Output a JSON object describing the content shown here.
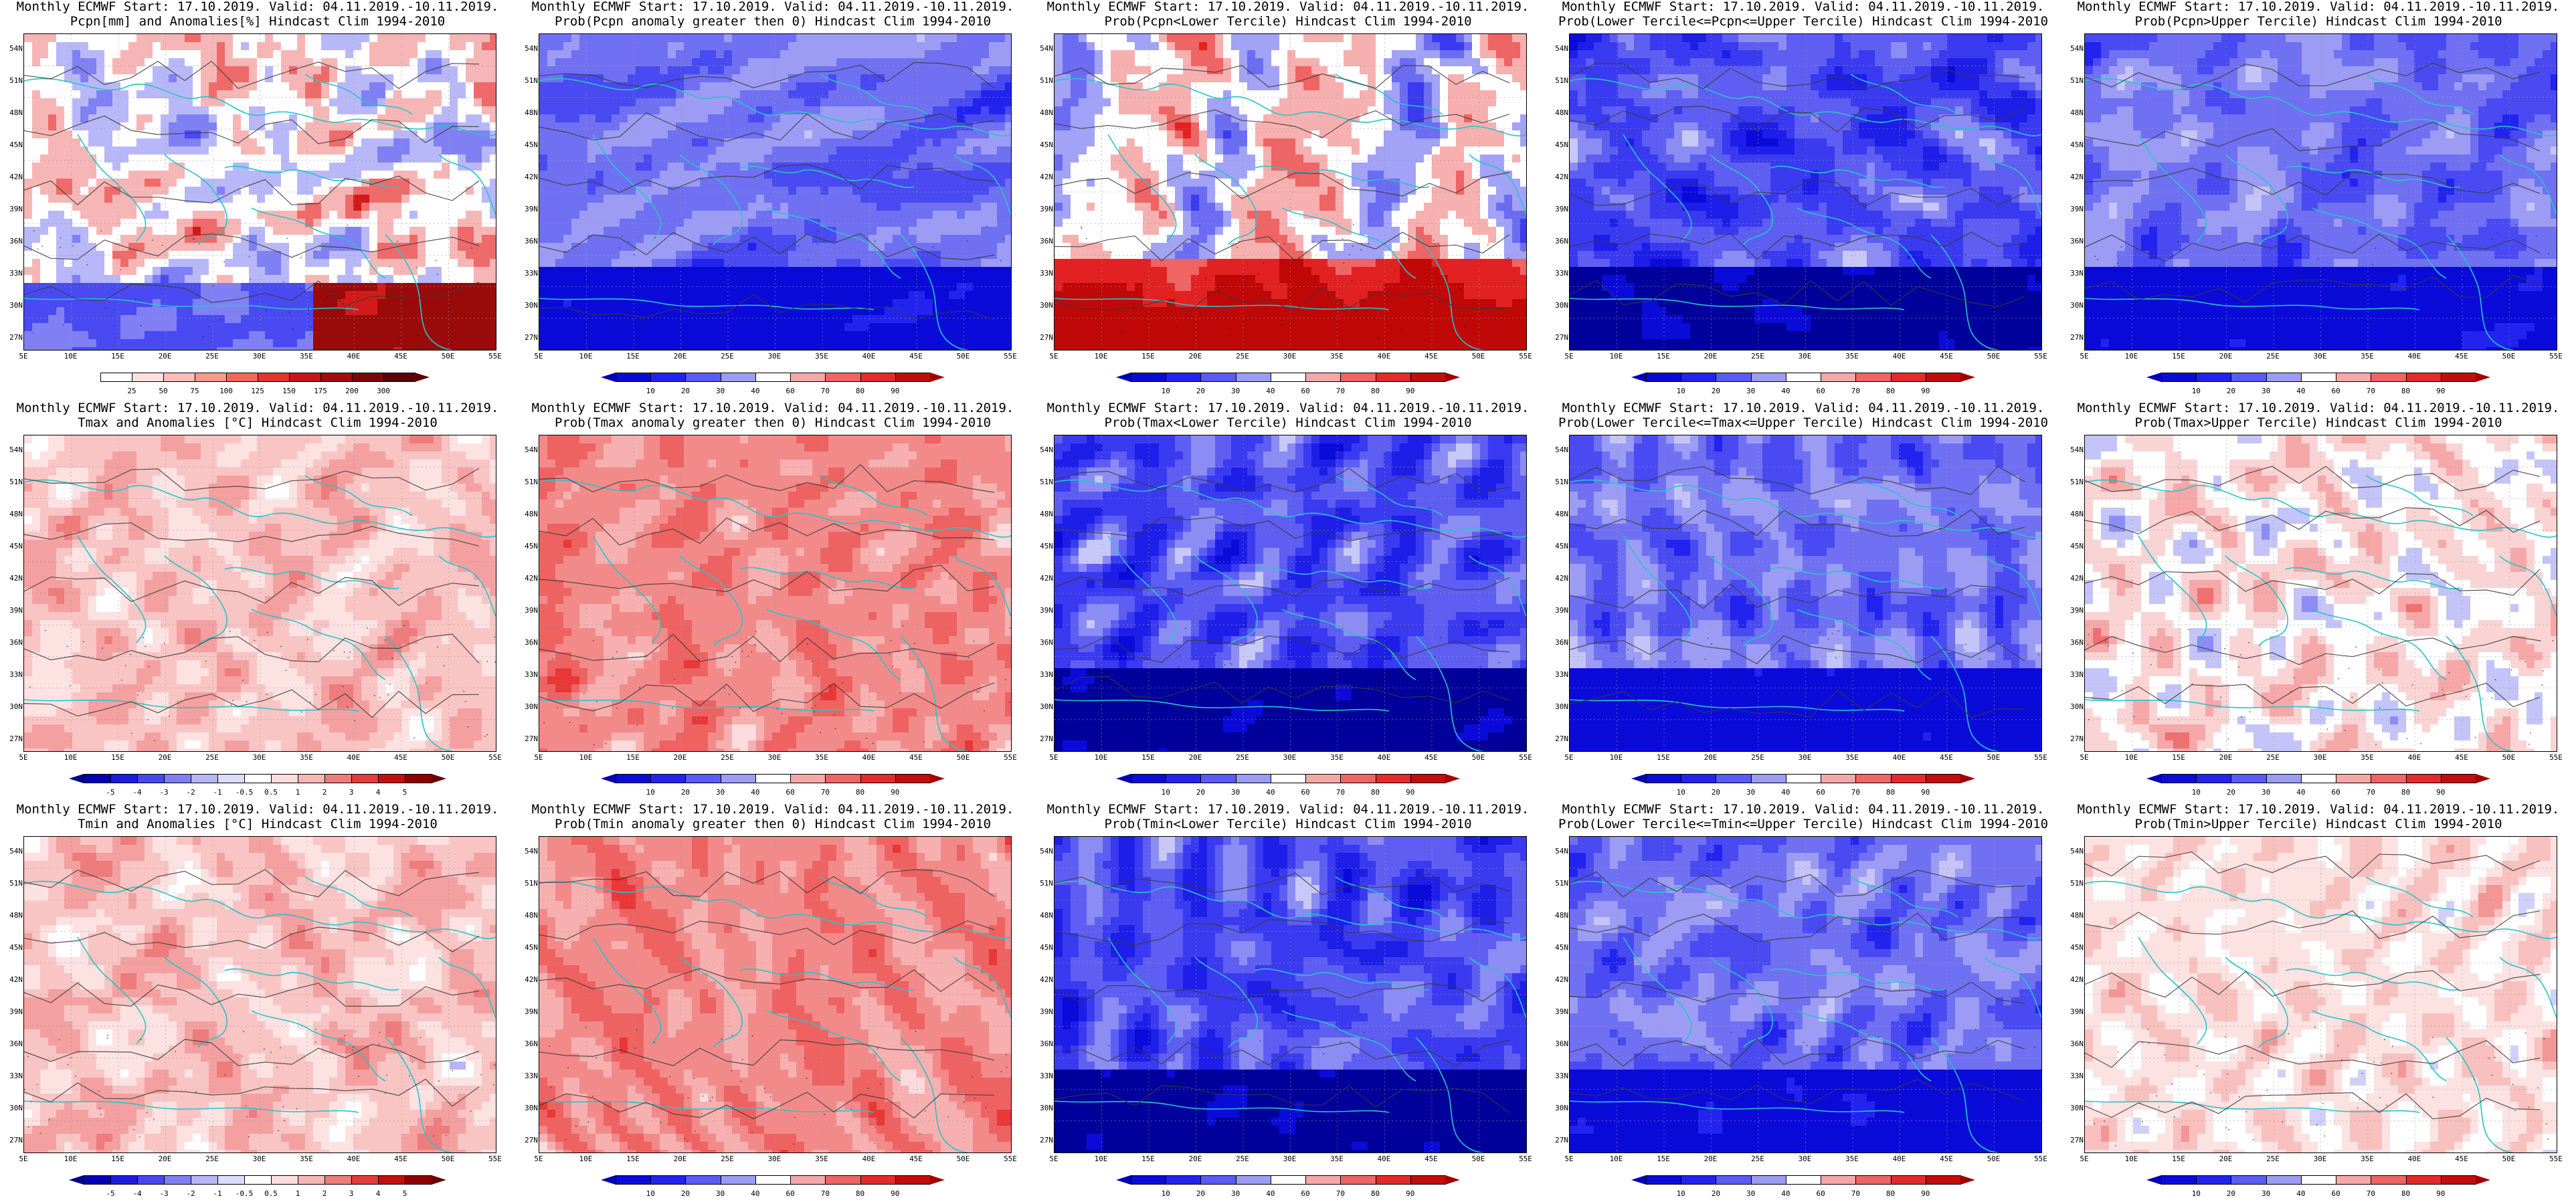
{
  "panels": [
    {
      "row": 0,
      "col": 0,
      "title1": "Monthly ECMWF Start: 17.10.2019. Valid: 04.11.2019.-10.11.2019.",
      "title2": "Pcpn[mm] and Anomalies[%] Hindcast Clim 1994-2010",
      "scheme": "anom-precip",
      "cbar": "precip"
    },
    {
      "row": 0,
      "col": 1,
      "title1": "Monthly ECMWF Start: 17.10.2019. Valid: 04.11.2019.-10.11.2019.",
      "title2": "Prob(Pcpn anomaly greater then 0) Hindcast Clim 1994-2010",
      "scheme": "prob-blue",
      "cbar": "prob"
    },
    {
      "row": 0,
      "col": 2,
      "title1": "Monthly ECMWF Start: 17.10.2019. Valid: 04.11.2019.-10.11.2019.",
      "title2": "Prob(Pcpn<Lower Tercile) Hindcast Clim 1994-2010",
      "scheme": "prob-lower",
      "cbar": "prob"
    },
    {
      "row": 0,
      "col": 3,
      "title1": "Monthly ECMWF Start: 17.10.2019. Valid: 04.11.2019.-10.11.2019.",
      "title2": "Prob(Lower Tercile<=Pcpn<=Upper Tercile) Hindcast Clim 1994-2010",
      "scheme": "prob-deep",
      "cbar": "prob"
    },
    {
      "row": 0,
      "col": 4,
      "title1": "Monthly ECMWF Start: 17.10.2019. Valid: 04.11.2019.-10.11.2019.",
      "title2": "Prob(Pcpn>Upper Tercile) Hindcast Clim 1994-2010",
      "scheme": "prob-blue",
      "cbar": "prob"
    },
    {
      "row": 1,
      "col": 0,
      "title1": "Monthly ECMWF Start: 17.10.2019. Valid: 04.11.2019.-10.11.2019.",
      "title2": "Tmax and Anomalies [°C] Hindcast Clim 1994-2010",
      "scheme": "anom-warm",
      "cbar": "temp"
    },
    {
      "row": 1,
      "col": 1,
      "title1": "Monthly ECMWF Start: 17.10.2019. Valid: 04.11.2019.-10.11.2019.",
      "title2": "Prob(Tmax anomaly greater then 0) Hindcast Clim 1994-2010",
      "scheme": "prob-red",
      "cbar": "prob"
    },
    {
      "row": 1,
      "col": 2,
      "title1": "Monthly ECMWF Start: 17.10.2019. Valid: 04.11.2019.-10.11.2019.",
      "title2": "Prob(Tmax<Lower Tercile) Hindcast Clim 1994-2010",
      "scheme": "prob-deep",
      "cbar": "prob"
    },
    {
      "row": 1,
      "col": 3,
      "title1": "Monthly ECMWF Start: 17.10.2019. Valid: 04.11.2019.-10.11.2019.",
      "title2": "Prob(Lower Tercile<=Tmax<=Upper Tercile) Hindcast Clim 1994-2010",
      "scheme": "prob-blue",
      "cbar": "prob"
    },
    {
      "row": 1,
      "col": 4,
      "title1": "Monthly ECMWF Start: 17.10.2019. Valid: 04.11.2019.-10.11.2019.",
      "title2": "Prob(Tmax>Upper Tercile) Hindcast Clim 1994-2010",
      "scheme": "prob-mixed",
      "cbar": "prob"
    },
    {
      "row": 2,
      "col": 0,
      "title1": "Monthly ECMWF Start: 17.10.2019. Valid: 04.11.2019.-10.11.2019.",
      "title2": "Tmin and Anomalies [°C] Hindcast Clim 1994-2010",
      "scheme": "anom-warm",
      "cbar": "temp"
    },
    {
      "row": 2,
      "col": 1,
      "title1": "Monthly ECMWF Start: 17.10.2019. Valid: 04.11.2019.-10.11.2019.",
      "title2": "Prob(Tmin anomaly greater then 0) Hindcast Clim 1994-2010",
      "scheme": "prob-red",
      "cbar": "prob"
    },
    {
      "row": 2,
      "col": 2,
      "title1": "Monthly ECMWF Start: 17.10.2019. Valid: 04.11.2019.-10.11.2019.",
      "title2": "Prob(Tmin<Lower Tercile) Hindcast Clim 1994-2010",
      "scheme": "prob-deep",
      "cbar": "prob"
    },
    {
      "row": 2,
      "col": 3,
      "title1": "Monthly ECMWF Start: 17.10.2019. Valid: 04.11.2019.-10.11.2019.",
      "title2": "Prob(Lower Tercile<=Tmin<=Upper Tercile) Hindcast Clim 1994-2010",
      "scheme": "prob-blue",
      "cbar": "prob"
    },
    {
      "row": 2,
      "col": 4,
      "title1": "Monthly ECMWF Start: 17.10.2019. Valid: 04.11.2019.-10.11.2019.",
      "title2": "Prob(Tmin>Upper Tercile) Hindcast Clim 1994-2010",
      "scheme": "prob-light-red",
      "cbar": "prob"
    }
  ],
  "axes": {
    "lat_labels": [
      "54N",
      "51N",
      "48N",
      "45N",
      "42N",
      "39N",
      "36N",
      "33N",
      "30N",
      "27N"
    ],
    "lon_labels": [
      "5E",
      "10E",
      "15E",
      "20E",
      "25E",
      "30E",
      "35E",
      "40E",
      "45E",
      "50E",
      "55E"
    ]
  },
  "colorbars": {
    "precip": {
      "labels": [
        "25",
        "50",
        "75",
        "100",
        "125",
        "150",
        "175",
        "200",
        "300"
      ],
      "colors": [
        "#ffffff",
        "#fde0dd",
        "#fbbdb5",
        "#f69a8c",
        "#ef6a5b",
        "#e2352c",
        "#c9141a",
        "#a10c10",
        "#7a0708",
        "#5a0405"
      ],
      "tri_left": "#ffffff",
      "tri_right": "#5a0405"
    },
    "prob": {
      "labels": [
        "10",
        "20",
        "30",
        "40",
        "60",
        "70",
        "80",
        "90"
      ],
      "colors": [
        "#0b0bd9",
        "#2323f0",
        "#5a5af4",
        "#9c9cf5",
        "#ffffff",
        "#f6a8a8",
        "#ef6464",
        "#e42a2a",
        "#c30c0c"
      ],
      "tri_left": "#0000b8",
      "tri_right": "#a00000"
    },
    "temp": {
      "labels": [
        "-5",
        "-4",
        "-3",
        "-2",
        "-1",
        "-0.5",
        "0.5",
        "1",
        "2",
        "3",
        "4",
        "5"
      ],
      "colors": [
        "#0000b8",
        "#1c1cdf",
        "#4848ee",
        "#7f7ff3",
        "#b5b5f8",
        "#dcdcfb",
        "#ffffff",
        "#fcdede",
        "#f7b6b6",
        "#ef7c7c",
        "#e23c3c",
        "#c40f0f",
        "#8e0000"
      ],
      "tri_left": "#00008a",
      "tri_right": "#6b0000"
    }
  },
  "colors": {
    "coast": "#26c5c8",
    "contour": "#3a3a3a",
    "frame": "#000000"
  }
}
